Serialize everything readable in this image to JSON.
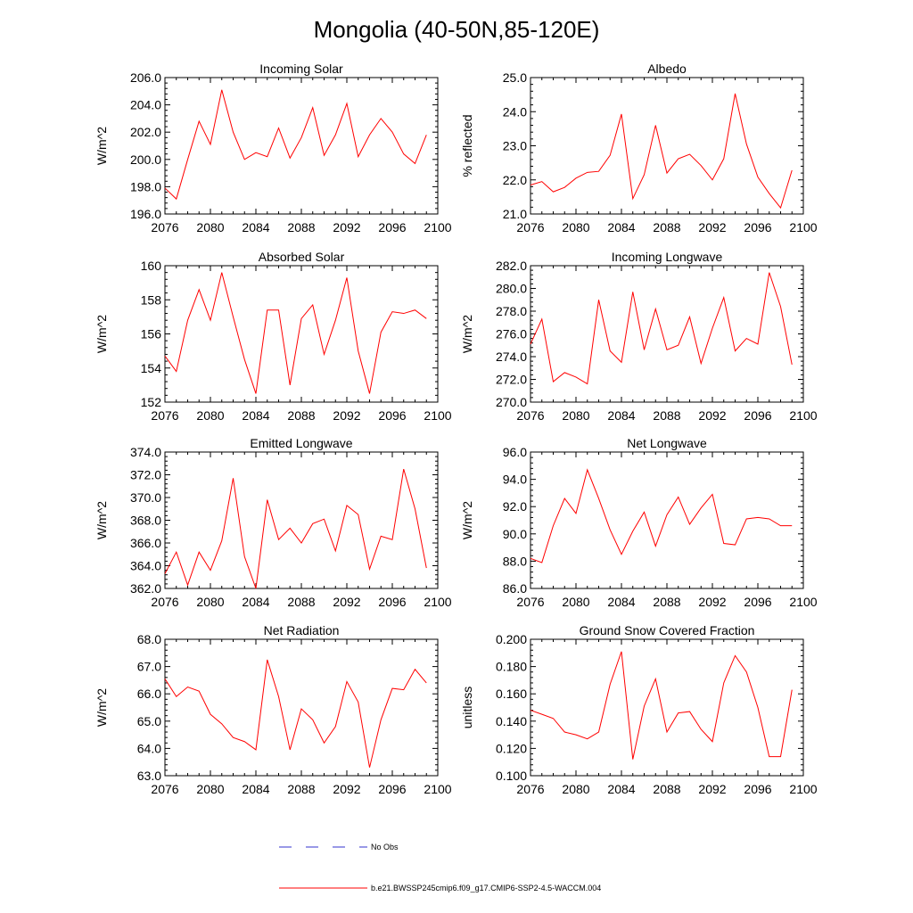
{
  "title": "Mongolia (40-50N,85-120E)",
  "legend": [
    {
      "label": "No Obs",
      "color": "#3333cc",
      "style": "dashed"
    },
    {
      "label": "b.e21.BWSSP245cmip6.f09_g17.CMIP6-SSP2-4.5-WACCM.004",
      "color": "#ff0000",
      "style": "solid"
    }
  ],
  "chart_data": [
    {
      "type": "line",
      "title": "Incoming Solar",
      "ylabel": "W/m^2",
      "xlim": [
        2076,
        2100
      ],
      "xticks": [
        2076,
        2080,
        2084,
        2088,
        2092,
        2096,
        2100
      ],
      "ylim": [
        196,
        206
      ],
      "yticks": [
        196,
        198,
        200,
        202,
        204,
        206
      ],
      "ydecimals": 1,
      "x": [
        2076,
        2077,
        2078,
        2079,
        2080,
        2081,
        2082,
        2083,
        2084,
        2085,
        2086,
        2087,
        2088,
        2089,
        2090,
        2091,
        2092,
        2093,
        2094,
        2095,
        2096,
        2097,
        2098,
        2099
      ],
      "values": [
        197.9,
        197.1,
        200.0,
        202.8,
        201.1,
        205.1,
        202.0,
        200.0,
        200.5,
        200.2,
        202.3,
        200.1,
        201.6,
        203.8,
        200.3,
        201.8,
        204.1,
        200.2,
        201.8,
        203.0,
        202.0,
        200.4,
        199.7,
        201.8
      ]
    },
    {
      "type": "line",
      "title": "Albedo",
      "ylabel": "% reflected",
      "xlim": [
        2076,
        2100
      ],
      "xticks": [
        2076,
        2080,
        2084,
        2088,
        2092,
        2096,
        2100
      ],
      "ylim": [
        21,
        25
      ],
      "yticks": [
        21,
        22,
        23,
        24,
        25
      ],
      "ydecimals": 1,
      "x": [
        2076,
        2077,
        2078,
        2079,
        2080,
        2081,
        2082,
        2083,
        2084,
        2085,
        2086,
        2087,
        2088,
        2089,
        2090,
        2091,
        2092,
        2093,
        2094,
        2095,
        2096,
        2097,
        2098,
        2099
      ],
      "values": [
        21.85,
        21.95,
        21.65,
        21.78,
        22.05,
        22.22,
        22.25,
        22.72,
        23.93,
        21.45,
        22.15,
        23.6,
        22.2,
        22.62,
        22.75,
        22.42,
        22.0,
        22.62,
        24.53,
        23.05,
        22.08,
        21.6,
        21.18,
        22.28
      ]
    },
    {
      "type": "line",
      "title": "Absorbed Solar",
      "ylabel": "W/m^2",
      "xlim": [
        2076,
        2100
      ],
      "xticks": [
        2076,
        2080,
        2084,
        2088,
        2092,
        2096,
        2100
      ],
      "ylim": [
        152,
        160
      ],
      "yticks": [
        152,
        154,
        156,
        158,
        160
      ],
      "ydecimals": 0,
      "x": [
        2076,
        2077,
        2078,
        2079,
        2080,
        2081,
        2082,
        2083,
        2084,
        2085,
        2086,
        2087,
        2088,
        2089,
        2090,
        2091,
        2092,
        2093,
        2094,
        2095,
        2096,
        2097,
        2098,
        2099
      ],
      "values": [
        154.7,
        153.8,
        156.8,
        158.6,
        156.8,
        159.6,
        157.0,
        154.5,
        152.5,
        157.4,
        157.4,
        153.0,
        156.9,
        157.7,
        154.8,
        156.8,
        159.3,
        155.0,
        152.5,
        156.1,
        157.3,
        157.2,
        157.4,
        156.9
      ]
    },
    {
      "type": "line",
      "title": "Incoming Longwave",
      "ylabel": "W/m^2",
      "xlim": [
        2076,
        2100
      ],
      "xticks": [
        2076,
        2080,
        2084,
        2088,
        2092,
        2096,
        2100
      ],
      "ylim": [
        270,
        282
      ],
      "yticks": [
        270,
        272,
        274,
        276,
        278,
        280,
        282
      ],
      "ydecimals": 1,
      "x": [
        2076,
        2077,
        2078,
        2079,
        2080,
        2081,
        2082,
        2083,
        2084,
        2085,
        2086,
        2087,
        2088,
        2089,
        2090,
        2091,
        2092,
        2093,
        2094,
        2095,
        2096,
        2097,
        2098,
        2099
      ],
      "values": [
        275.1,
        277.3,
        271.8,
        272.6,
        272.2,
        271.6,
        279.0,
        274.5,
        273.5,
        279.7,
        274.6,
        278.2,
        274.6,
        275.0,
        277.5,
        273.4,
        276.5,
        279.2,
        274.5,
        275.6,
        275.1,
        281.4,
        278.4,
        273.3
      ]
    },
    {
      "type": "line",
      "title": "Emitted Longwave",
      "ylabel": "W/m^2",
      "xlim": [
        2076,
        2100
      ],
      "xticks": [
        2076,
        2080,
        2084,
        2088,
        2092,
        2096,
        2100
      ],
      "ylim": [
        362,
        374
      ],
      "yticks": [
        362,
        364,
        366,
        368,
        370,
        372,
        374
      ],
      "ydecimals": 1,
      "x": [
        2076,
        2077,
        2078,
        2079,
        2080,
        2081,
        2082,
        2083,
        2084,
        2085,
        2086,
        2087,
        2088,
        2089,
        2090,
        2091,
        2092,
        2093,
        2094,
        2095,
        2096,
        2097,
        2098,
        2099
      ],
      "values": [
        363.3,
        365.2,
        362.3,
        365.2,
        363.6,
        366.2,
        371.7,
        364.8,
        362.0,
        369.8,
        366.3,
        367.3,
        366.0,
        367.7,
        368.1,
        365.3,
        369.3,
        368.5,
        363.7,
        366.6,
        366.3,
        372.5,
        369.0,
        363.8
      ]
    },
    {
      "type": "line",
      "title": "Net Longwave",
      "ylabel": "W/m^2",
      "xlim": [
        2076,
        2100
      ],
      "xticks": [
        2076,
        2080,
        2084,
        2088,
        2092,
        2096,
        2100
      ],
      "ylim": [
        86,
        96
      ],
      "yticks": [
        86,
        88,
        90,
        92,
        94,
        96
      ],
      "ydecimals": 1,
      "x": [
        2076,
        2077,
        2078,
        2079,
        2080,
        2081,
        2082,
        2083,
        2084,
        2085,
        2086,
        2087,
        2088,
        2089,
        2090,
        2091,
        2092,
        2093,
        2094,
        2095,
        2096,
        2097,
        2098,
        2099
      ],
      "values": [
        88.2,
        87.9,
        90.6,
        92.6,
        91.5,
        94.7,
        92.6,
        90.3,
        88.5,
        90.2,
        91.6,
        89.1,
        91.4,
        92.7,
        90.7,
        91.9,
        92.9,
        89.3,
        89.2,
        91.1,
        91.2,
        91.1,
        90.6,
        90.6
      ]
    },
    {
      "type": "line",
      "title": "Net Radiation",
      "ylabel": "W/m^2",
      "xlim": [
        2076,
        2100
      ],
      "xticks": [
        2076,
        2080,
        2084,
        2088,
        2092,
        2096,
        2100
      ],
      "ylim": [
        63,
        68
      ],
      "yticks": [
        63,
        64,
        65,
        66,
        67,
        68
      ],
      "ydecimals": 1,
      "x": [
        2076,
        2077,
        2078,
        2079,
        2080,
        2081,
        2082,
        2083,
        2084,
        2085,
        2086,
        2087,
        2088,
        2089,
        2090,
        2091,
        2092,
        2093,
        2094,
        2095,
        2096,
        2097,
        2098,
        2099
      ],
      "values": [
        66.55,
        65.9,
        66.25,
        66.1,
        65.25,
        64.9,
        64.4,
        64.25,
        63.95,
        67.25,
        65.9,
        63.95,
        65.45,
        65.05,
        64.2,
        64.8,
        66.45,
        65.7,
        63.3,
        65.05,
        66.2,
        66.15,
        66.9,
        66.4
      ]
    },
    {
      "type": "line",
      "title": "Ground Snow Covered Fraction",
      "ylabel": "unitless",
      "xlim": [
        2076,
        2100
      ],
      "xticks": [
        2076,
        2080,
        2084,
        2088,
        2092,
        2096,
        2100
      ],
      "ylim": [
        0.1,
        0.2
      ],
      "yticks": [
        0.1,
        0.12,
        0.14,
        0.16,
        0.18,
        0.2
      ],
      "ydecimals": 3,
      "x": [
        2076,
        2077,
        2078,
        2079,
        2080,
        2081,
        2082,
        2083,
        2084,
        2085,
        2086,
        2087,
        2088,
        2089,
        2090,
        2091,
        2092,
        2093,
        2094,
        2095,
        2096,
        2097,
        2098,
        2099
      ],
      "values": [
        0.148,
        0.145,
        0.142,
        0.132,
        0.13,
        0.127,
        0.132,
        0.167,
        0.191,
        0.112,
        0.151,
        0.171,
        0.132,
        0.146,
        0.147,
        0.134,
        0.125,
        0.168,
        0.188,
        0.176,
        0.15,
        0.114,
        0.114,
        0.163
      ]
    }
  ]
}
